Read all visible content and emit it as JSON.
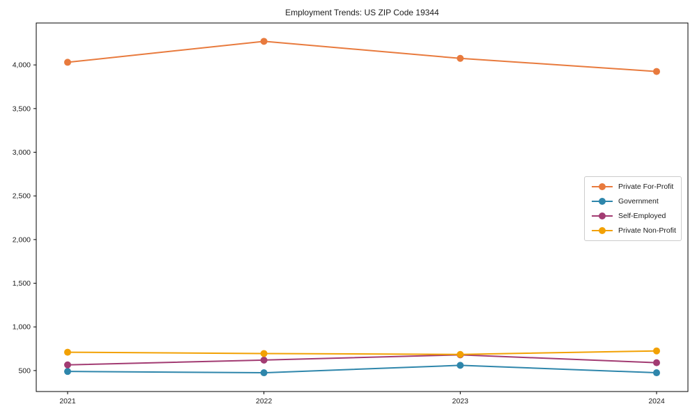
{
  "chart_data": {
    "type": "line",
    "title": "Employment Trends: US ZIP Code 19344",
    "categories": [
      "2021",
      "2022",
      "2023",
      "2024"
    ],
    "series": [
      {
        "name": "Private For-Profit",
        "color": "#E87A3D",
        "values": [
          4030,
          4270,
          4075,
          3925
        ]
      },
      {
        "name": "Government",
        "color": "#2E86AB",
        "values": [
          490,
          475,
          560,
          475
        ]
      },
      {
        "name": "Self-Employed",
        "color": "#A23B72",
        "values": [
          565,
          620,
          680,
          590
        ]
      },
      {
        "name": "Private Non-Profit",
        "color": "#F2A104",
        "values": [
          710,
          695,
          685,
          725
        ]
      }
    ],
    "xlabel": "",
    "ylabel": "",
    "ylim": [
      260,
      4480
    ],
    "yticks": [
      500,
      1000,
      1500,
      2000,
      2500,
      3000,
      3500,
      4000
    ],
    "grid": false,
    "legend_position": "center right",
    "marker": "circle"
  }
}
